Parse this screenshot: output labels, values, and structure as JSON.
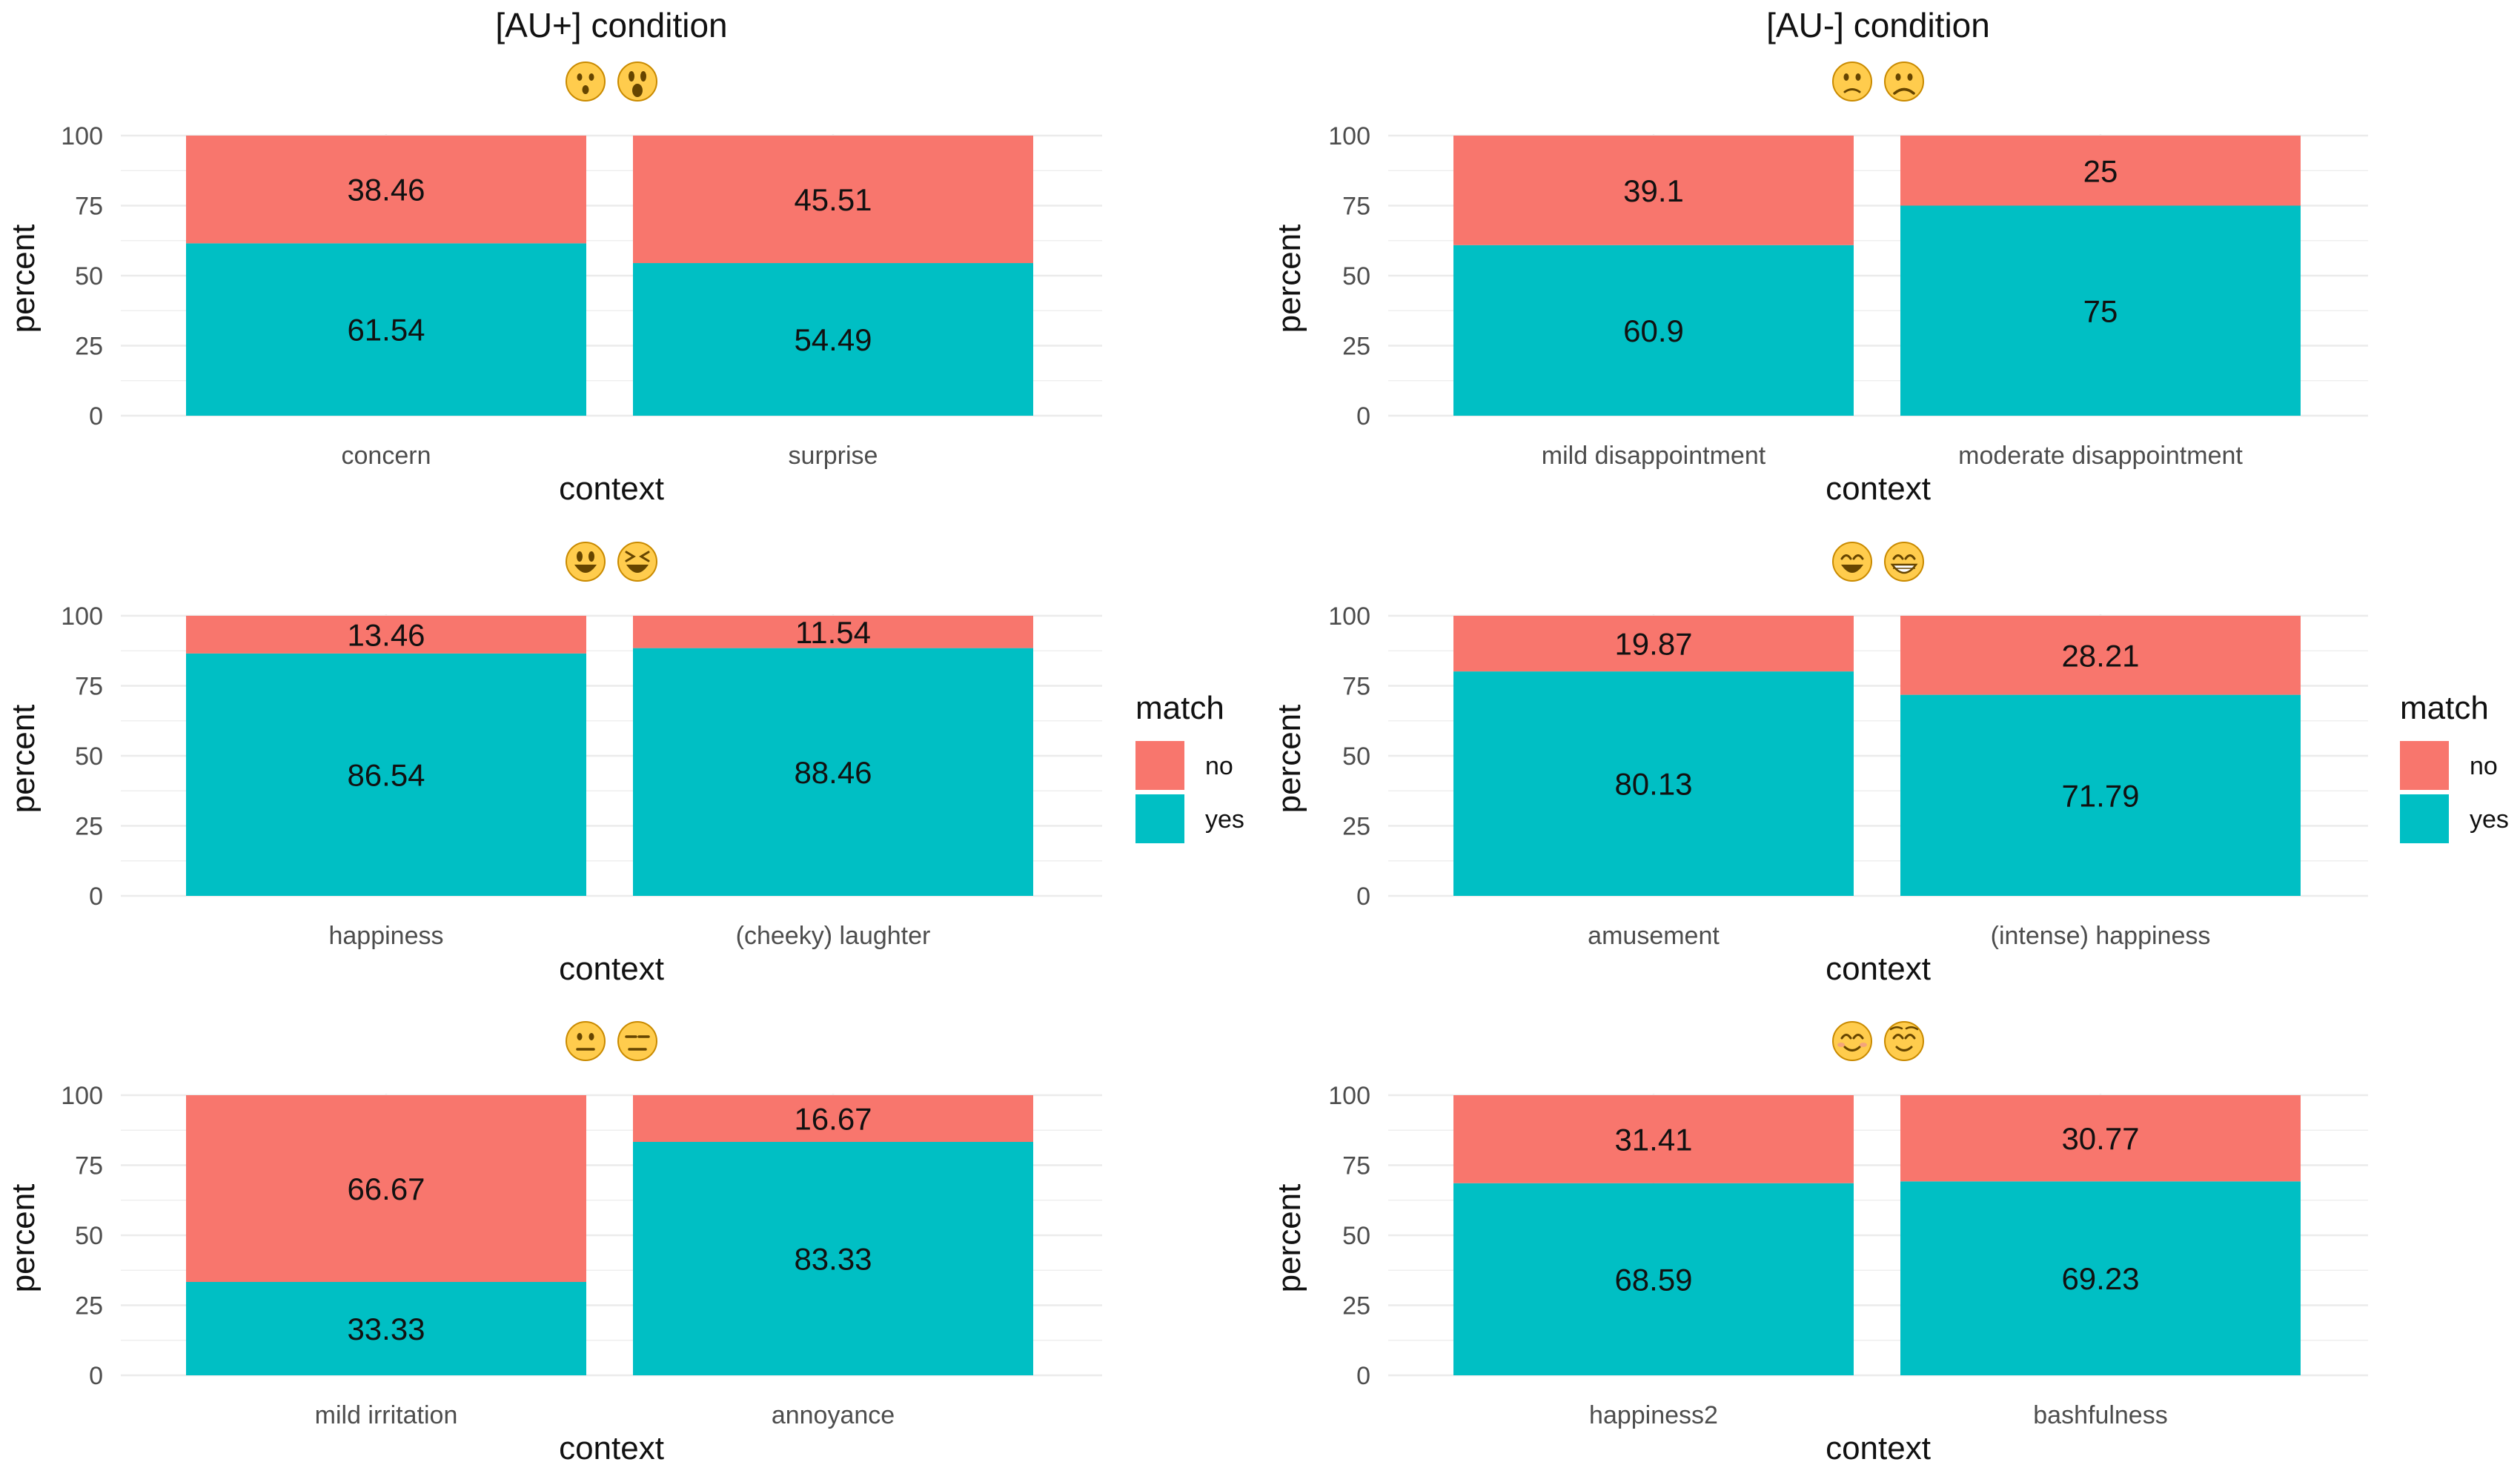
{
  "colors": {
    "no": "#F8766D",
    "yes": "#00BFC4",
    "grid": "#ebebeb",
    "emoji": "#FFCC4D",
    "emoji_dark": "#664500"
  },
  "legend": {
    "title": "match",
    "items": [
      {
        "label": "no",
        "key": "no"
      },
      {
        "label": "yes",
        "key": "yes"
      }
    ]
  },
  "chart_data": [
    {
      "type": "bar",
      "stacked": true,
      "title": "[AU+] condition",
      "emojis": [
        "hushed-face-emoji",
        "astonished-face-emoji"
      ],
      "xlabel": "context",
      "ylabel": "percent",
      "ylim": [
        0,
        100
      ],
      "yticks": [
        0,
        25,
        50,
        75,
        100
      ],
      "categories": [
        "concern",
        "surprise"
      ],
      "series": [
        {
          "name": "no",
          "values": [
            38.46,
            45.51
          ]
        },
        {
          "name": "yes",
          "values": [
            61.54,
            54.49
          ]
        }
      ],
      "labels": {
        "no": [
          "38.46",
          "45.51"
        ],
        "yes": [
          "61.54",
          "54.49"
        ]
      }
    },
    {
      "type": "bar",
      "stacked": true,
      "title": "[AU-] condition",
      "emojis": [
        "slightly-frowning-face-emoji",
        "frowning-face-emoji"
      ],
      "xlabel": "context",
      "ylabel": "percent",
      "ylim": [
        0,
        100
      ],
      "yticks": [
        0,
        25,
        50,
        75,
        100
      ],
      "categories": [
        "mild disappointment",
        "moderate disappointment"
      ],
      "series": [
        {
          "name": "no",
          "values": [
            39.1,
            25
          ]
        },
        {
          "name": "yes",
          "values": [
            60.9,
            75
          ]
        }
      ],
      "labels": {
        "no": [
          "39.1",
          "25"
        ],
        "yes": [
          "60.9",
          "75"
        ]
      }
    },
    {
      "type": "bar",
      "stacked": true,
      "title": "",
      "emojis": [
        "grinning-face-big-eyes-emoji",
        "grinning-squinting-face-emoji"
      ],
      "xlabel": "context",
      "ylabel": "percent",
      "ylim": [
        0,
        100
      ],
      "yticks": [
        0,
        25,
        50,
        75,
        100
      ],
      "categories": [
        "happiness",
        "(cheeky) laughter"
      ],
      "series": [
        {
          "name": "no",
          "values": [
            13.46,
            11.54
          ]
        },
        {
          "name": "yes",
          "values": [
            86.54,
            88.46
          ]
        }
      ],
      "labels": {
        "no": [
          "13.46",
          "11.54"
        ],
        "yes": [
          "86.54",
          "88.46"
        ]
      }
    },
    {
      "type": "bar",
      "stacked": true,
      "title": "",
      "emojis": [
        "grinning-face-smiling-eyes-emoji",
        "beaming-face-emoji"
      ],
      "xlabel": "context",
      "ylabel": "percent",
      "ylim": [
        0,
        100
      ],
      "yticks": [
        0,
        25,
        50,
        75,
        100
      ],
      "categories": [
        "amusement",
        "(intense) happiness"
      ],
      "series": [
        {
          "name": "no",
          "values": [
            19.87,
            28.21
          ]
        },
        {
          "name": "yes",
          "values": [
            80.13,
            71.79
          ]
        }
      ],
      "labels": {
        "no": [
          "19.87",
          "28.21"
        ],
        "yes": [
          "80.13",
          "71.79"
        ]
      }
    },
    {
      "type": "bar",
      "stacked": true,
      "title": "",
      "emojis": [
        "neutral-face-emoji",
        "expressionless-face-emoji"
      ],
      "xlabel": "context",
      "ylabel": "percent",
      "ylim": [
        0,
        100
      ],
      "yticks": [
        0,
        25,
        50,
        75,
        100
      ],
      "categories": [
        "mild irritation",
        "annoyance"
      ],
      "series": [
        {
          "name": "no",
          "values": [
            66.67,
            16.67
          ]
        },
        {
          "name": "yes",
          "values": [
            33.33,
            83.33
          ]
        }
      ],
      "labels": {
        "no": [
          "66.67",
          "16.67"
        ],
        "yes": [
          "33.33",
          "83.33"
        ]
      }
    },
    {
      "type": "bar",
      "stacked": true,
      "title": "",
      "emojis": [
        "smiling-face-smiling-eyes-emoji",
        "smiling-face-emoji"
      ],
      "xlabel": "context",
      "ylabel": "percent",
      "ylim": [
        0,
        100
      ],
      "yticks": [
        0,
        25,
        50,
        75,
        100
      ],
      "categories": [
        "happiness2",
        "bashfulness"
      ],
      "series": [
        {
          "name": "no",
          "values": [
            31.41,
            30.77
          ]
        },
        {
          "name": "yes",
          "values": [
            68.59,
            69.23
          ]
        }
      ],
      "labels": {
        "no": [
          "31.41",
          "30.77"
        ],
        "yes": [
          "68.59",
          "69.23"
        ]
      }
    }
  ]
}
